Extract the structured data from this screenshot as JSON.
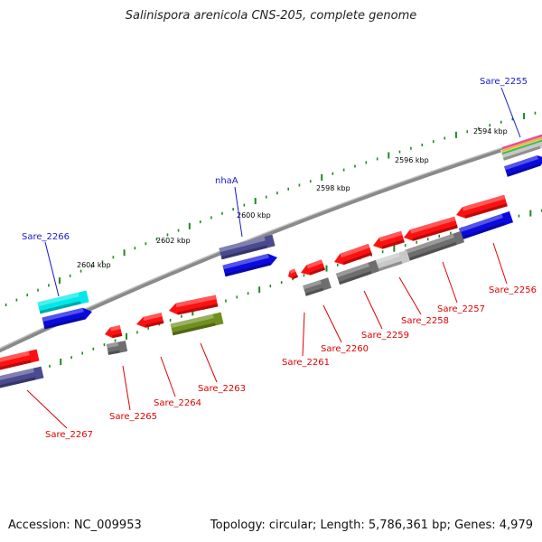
{
  "title": "Salinispora arenicola CNS-205, complete genome",
  "accession": "Accession: NC_009953",
  "stats": "Topology: circular; Length: 5,786,361 bp; Genes: 4,979",
  "colors": {
    "backbone": "#8a8a8a",
    "tick": "#1e8a1e",
    "label_plus": "#1a1ad0",
    "label_minus": "#e00000",
    "red_gene": "#ff1010",
    "gray_gene": "#6e6e6e",
    "light_gray_gene": "#c8c8c8",
    "olive_gene": "#6f8f1e",
    "navy_gene": "#4a4a90",
    "blue_gene": "#0a0ae0",
    "cyan_gene": "#00e8e8"
  },
  "tick_labels": [
    "2604 kbp",
    "2602 kbp",
    "2600 kbp",
    "2598 kbp",
    "2596 kbp",
    "2594 kbp"
  ],
  "plus_labels": [
    "Sare_2266",
    "nhaA",
    "Sare_2255"
  ],
  "minus_labels": [
    "Sare_2267",
    "Sare_2265",
    "Sare_2264",
    "Sare_2263",
    "Sare_2261",
    "Sare_2260",
    "Sare_2259",
    "Sare_2258",
    "Sare_2257",
    "Sare_2256"
  ]
}
